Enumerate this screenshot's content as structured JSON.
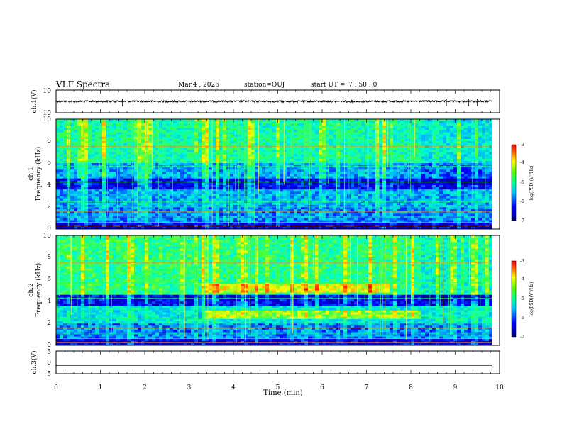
{
  "header": {
    "title": "VLF Spectra",
    "date": "Mar.4 , 2026",
    "station": "station=OUJ",
    "start_label": "start UT =",
    "start_time": "7 : 50 : 0"
  },
  "chart_data": [
    {
      "type": "line",
      "name": "ch1-waveform",
      "ylabel": "ch.1(V)",
      "ylim": [
        -10,
        10
      ],
      "yticks": [
        "10",
        "-10"
      ],
      "xlim": [
        0,
        10
      ],
      "baseline": 0,
      "spike_times": [
        1.5,
        2.95,
        8.8,
        9.3,
        9.5
      ]
    },
    {
      "type": "heatmap",
      "name": "ch1-spectrogram",
      "ylabel": "ch.1",
      "ylabel2": "Frequency (kHz)",
      "ylim": [
        0,
        10
      ],
      "yticks": [
        "0",
        "2",
        "4",
        "6",
        "8",
        "10"
      ],
      "xlim": [
        0,
        10
      ],
      "colorbar": {
        "label": "log(PSD)(V²/Hz)",
        "range": [
          -7,
          -3
        ],
        "ticks": [
          "-3",
          "-4",
          "-5",
          "-6",
          "-7"
        ]
      }
    },
    {
      "type": "heatmap",
      "name": "ch2-spectrogram",
      "ylabel": "ch.2",
      "ylabel2": "Frequency (kHz)",
      "ylim": [
        0,
        10
      ],
      "yticks": [
        "0",
        "2",
        "4",
        "6",
        "8",
        "10"
      ],
      "xlim": [
        0,
        10
      ],
      "colorbar": {
        "label": "log(PSD)(V²/Hz)",
        "range": [
          -7,
          -3
        ],
        "ticks": [
          "-3",
          "-4",
          "-5",
          "-6",
          "-7"
        ]
      }
    },
    {
      "type": "line",
      "name": "ch3-waveform",
      "ylabel": "ch.3(V)",
      "ylim": [
        -5,
        5
      ],
      "yticks": [
        "5",
        "0",
        "-5"
      ],
      "xlim": [
        0,
        10
      ],
      "baseline": -1.2
    }
  ],
  "xaxis": {
    "label": "Time (min)",
    "ticks": [
      "0",
      "1",
      "2",
      "3",
      "4",
      "5",
      "6",
      "7",
      "8",
      "9",
      "10"
    ]
  },
  "colors": {
    "cmap": [
      "#0000a0",
      "#0000ff",
      "#00b4ff",
      "#00ffc8",
      "#40ff40",
      "#ffff00",
      "#ff8000",
      "#ff0000"
    ]
  }
}
